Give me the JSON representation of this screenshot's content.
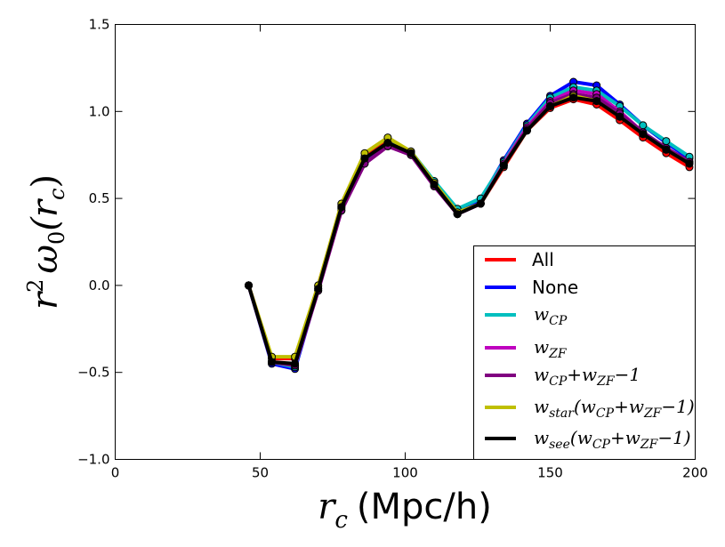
{
  "chart_data": {
    "type": "line",
    "title": "",
    "xlabel": {
      "symbol": "r",
      "sub": "c",
      "unit": "(Mpc/h)"
    },
    "ylabel": {
      "pre": "r",
      "sup": "2",
      "omega": "ω",
      "sub0": "0",
      "arg": "(r",
      "argsub": "c",
      "close": ")"
    },
    "xlim": [
      0,
      200
    ],
    "ylim": [
      -1.0,
      1.5
    ],
    "xticks": [
      0,
      50,
      100,
      150,
      200
    ],
    "xtick_labels": [
      "0",
      "50",
      "100",
      "150",
      "200"
    ],
    "yticks": [
      -1.0,
      -0.5,
      0.0,
      0.5,
      1.0,
      1.5
    ],
    "ytick_labels": [
      "−1.0",
      "−0.5",
      "0.0",
      "0.5",
      "1.0",
      "1.5"
    ],
    "grid": false,
    "legend_position": "lower-right",
    "x": [
      46,
      54,
      62,
      70,
      78,
      86,
      94,
      102,
      110,
      118,
      126,
      134,
      142,
      150,
      158,
      166,
      174,
      182,
      190,
      198
    ],
    "series": [
      {
        "key": "all",
        "name": "All",
        "color": "#ff0000",
        "values": [
          0.0,
          -0.42,
          -0.42,
          0.0,
          0.46,
          0.74,
          0.83,
          0.76,
          0.59,
          0.42,
          0.47,
          0.68,
          0.89,
          1.02,
          1.07,
          1.04,
          0.95,
          0.85,
          0.76,
          0.68
        ]
      },
      {
        "key": "none",
        "name": "None",
        "color": "#0000ff",
        "values": [
          0.0,
          -0.45,
          -0.48,
          -0.02,
          0.44,
          0.72,
          0.82,
          0.76,
          0.58,
          0.43,
          0.49,
          0.72,
          0.93,
          1.09,
          1.17,
          1.15,
          1.04,
          0.92,
          0.82,
          0.73
        ]
      },
      {
        "key": "wcp",
        "name": {
          "base": "w",
          "sub": "CP"
        },
        "color": "#00bfbf",
        "values": [
          0.0,
          -0.44,
          -0.47,
          -0.01,
          0.45,
          0.73,
          0.82,
          0.77,
          0.6,
          0.44,
          0.5,
          0.71,
          0.92,
          1.08,
          1.14,
          1.12,
          1.03,
          0.92,
          0.83,
          0.74
        ]
      },
      {
        "key": "wzf",
        "name": {
          "base": "w",
          "sub": "ZF"
        },
        "color": "#bf00bf",
        "values": [
          0.0,
          -0.44,
          -0.46,
          -0.03,
          0.43,
          0.7,
          0.8,
          0.75,
          0.57,
          0.41,
          0.47,
          0.7,
          0.91,
          1.06,
          1.12,
          1.1,
          1.0,
          0.88,
          0.79,
          0.71
        ]
      },
      {
        "key": "wcpzf",
        "name": {
          "w1": "w",
          "s1": "CP",
          "plus": "+",
          "w2": "w",
          "s2": "ZF",
          "tail": "−1"
        },
        "color": "#800080",
        "values": [
          0.0,
          -0.44,
          -0.46,
          -0.03,
          0.43,
          0.7,
          0.8,
          0.75,
          0.57,
          0.41,
          0.47,
          0.69,
          0.9,
          1.05,
          1.1,
          1.08,
          0.99,
          0.88,
          0.79,
          0.71
        ]
      },
      {
        "key": "wstar",
        "name": {
          "w0": "w",
          "s0": "star",
          "open": "(",
          "w1": "w",
          "s1": "CP",
          "plus": "+",
          "w2": "w",
          "s2": "ZF",
          "tail": "−1)"
        },
        "color": "#bfbf00",
        "values": [
          0.0,
          -0.41,
          -0.41,
          0.0,
          0.47,
          0.76,
          0.85,
          0.77,
          0.59,
          0.42,
          0.47,
          0.69,
          0.89,
          1.03,
          1.09,
          1.06,
          0.97,
          0.87,
          0.78,
          0.7
        ]
      },
      {
        "key": "wsee",
        "name": {
          "w0": "w",
          "s0": "see",
          "open": "(",
          "w1": "w",
          "s1": "CP",
          "plus": "+",
          "w2": "w",
          "s2": "ZF",
          "tail": "−1)"
        },
        "color": "#000000",
        "values": [
          0.0,
          -0.44,
          -0.45,
          -0.02,
          0.45,
          0.73,
          0.82,
          0.76,
          0.58,
          0.41,
          0.47,
          0.69,
          0.89,
          1.03,
          1.08,
          1.06,
          0.97,
          0.87,
          0.78,
          0.7
        ]
      }
    ]
  }
}
